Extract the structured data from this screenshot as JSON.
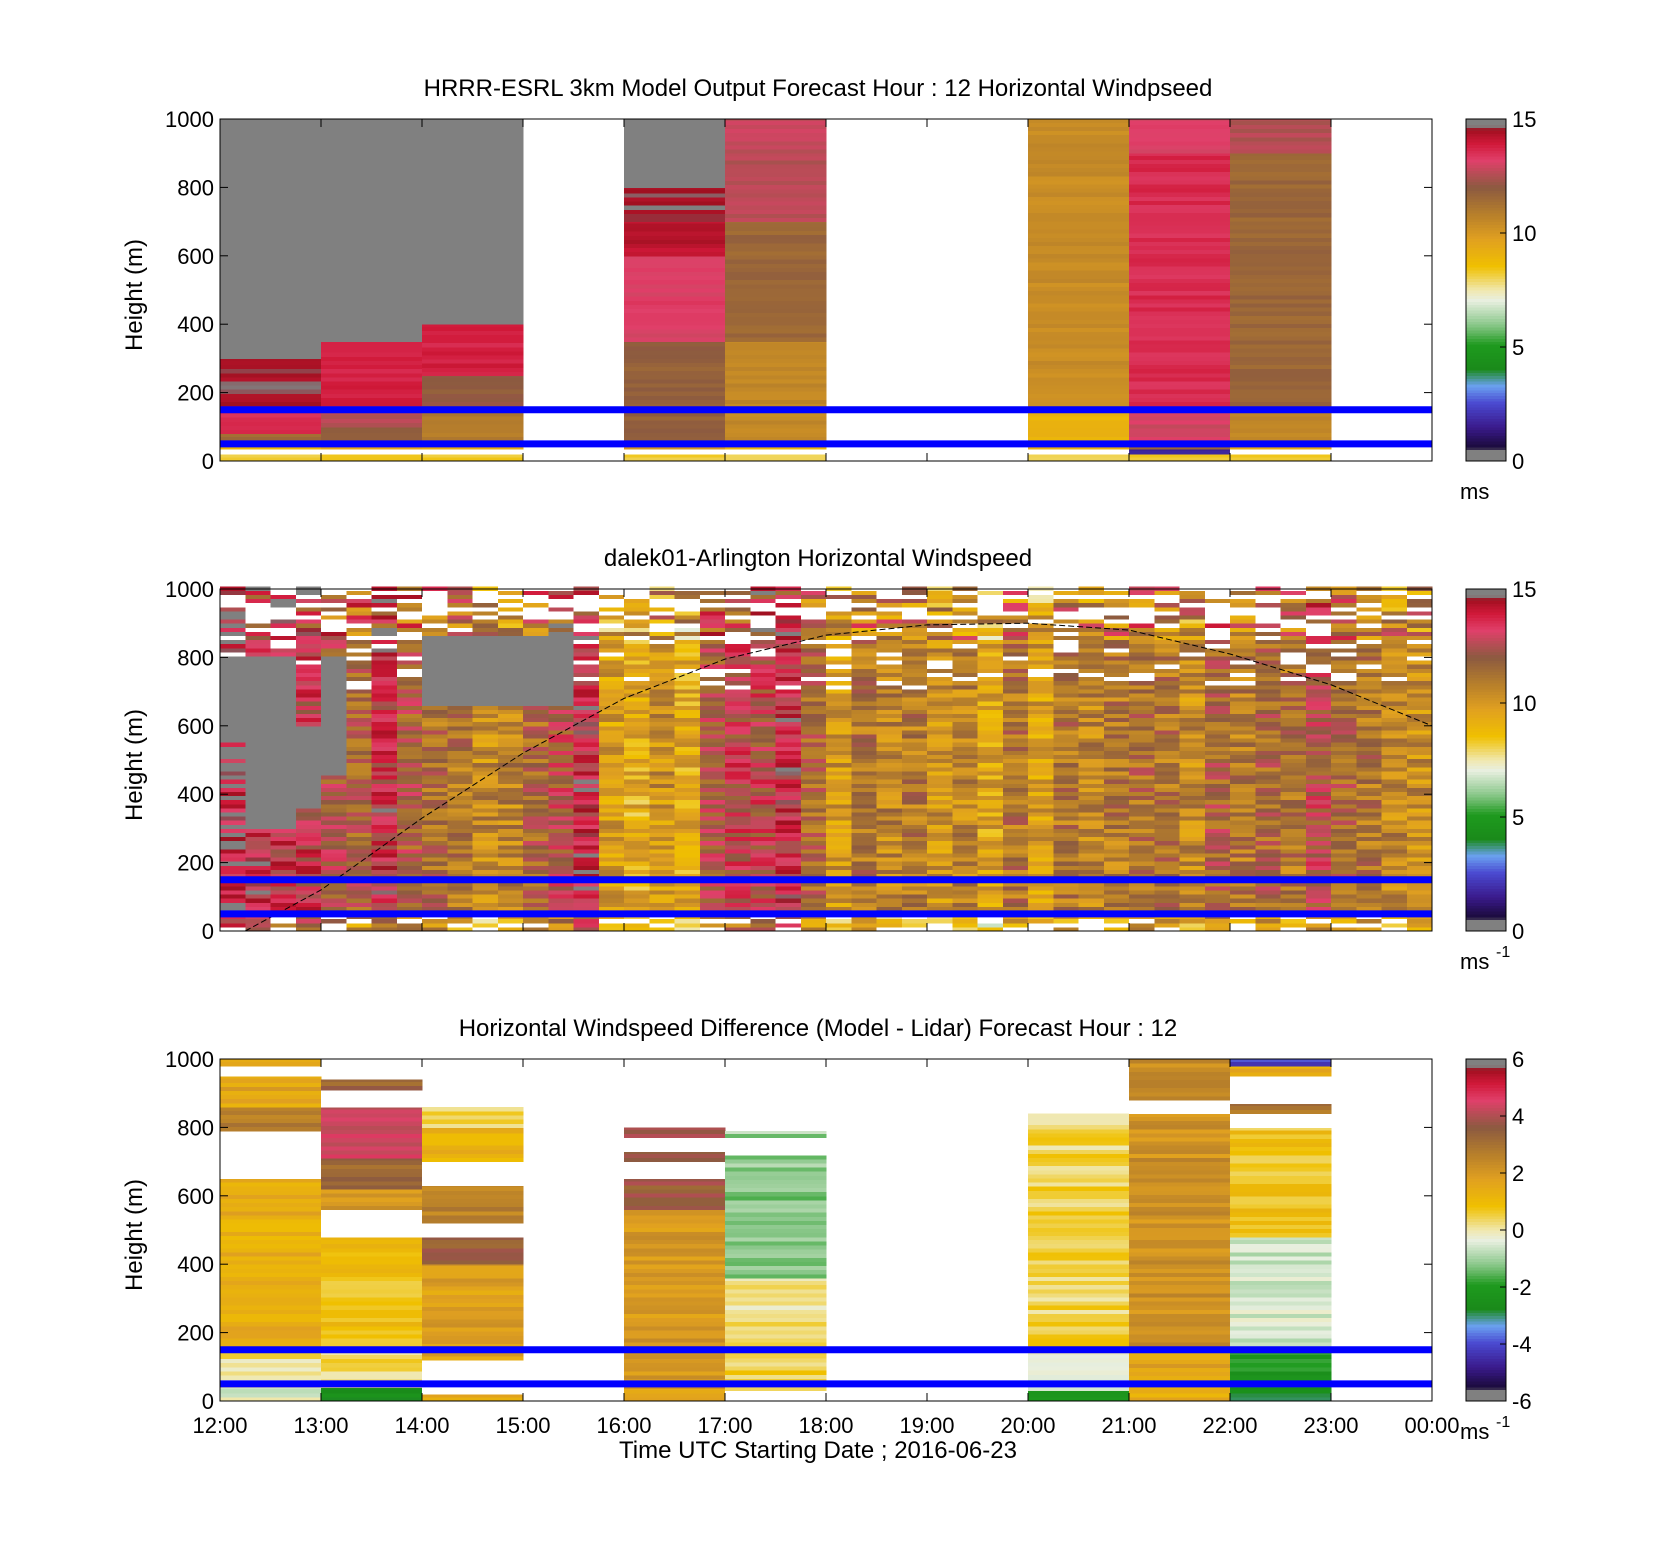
{
  "figure": {
    "xlabel": "Time UTC  Starting Date ; 2016-06-23",
    "x_tick_labels": [
      "12:00",
      "13:00",
      "14:00",
      "15:00",
      "16:00",
      "17:00",
      "18:00",
      "19:00",
      "20:00",
      "21:00",
      "22:00",
      "23:00",
      "00:00"
    ]
  },
  "colors": {
    "ref_line": "#0000ff",
    "missing": "#ffffff",
    "speed_scale": [
      [
        0.0,
        "#808080"
      ],
      [
        0.03,
        "#808080"
      ],
      [
        0.04,
        "#1a0a3a"
      ],
      [
        0.1,
        "#3a1a8c"
      ],
      [
        0.17,
        "#4a4ad0"
      ],
      [
        0.22,
        "#6aa0f0"
      ],
      [
        0.27,
        "#1a8a1a"
      ],
      [
        0.34,
        "#1e9a1e"
      ],
      [
        0.4,
        "#8cc88c"
      ],
      [
        0.47,
        "#e8efe0"
      ],
      [
        0.5,
        "#f0e8b0"
      ],
      [
        0.57,
        "#f0c000"
      ],
      [
        0.65,
        "#e0a020"
      ],
      [
        0.72,
        "#b8802a"
      ],
      [
        0.8,
        "#8c5a40"
      ],
      [
        0.88,
        "#e0406a"
      ],
      [
        0.93,
        "#d01838"
      ],
      [
        0.97,
        "#a01020"
      ],
      [
        0.98,
        "#808080"
      ],
      [
        1.0,
        "#808080"
      ]
    ]
  },
  "chart_data": [
    {
      "type": "heatmap",
      "title": "HRRR-ESRL 3km Model Output   Forecast Hour : 12 Horizontal Windpseed",
      "ylabel": "Height (m)",
      "ylim": [
        0,
        1000
      ],
      "yticks": [
        0,
        200,
        400,
        600,
        800,
        1000
      ],
      "x_hours": [
        12,
        24
      ],
      "reference_lines_m": [
        50,
        150
      ],
      "colorbar": {
        "range": [
          0,
          15
        ],
        "ticks": [
          0,
          5,
          10,
          15
        ],
        "unit": "ms",
        "unit_sup": ""
      },
      "columns": [
        {
          "x": [
            12,
            13
          ],
          "bands": [
            [
              0,
              20,
              8.2
            ],
            [
              20,
              35,
              null
            ],
            [
              35,
              60,
              8.8
            ],
            [
              60,
              80,
              11.5
            ],
            [
              80,
              150,
              13.5
            ],
            [
              150,
              300,
              14.5
            ],
            [
              300,
              1000,
              "gray"
            ]
          ]
        },
        {
          "x": [
            13,
            14
          ],
          "bands": [
            [
              0,
              20,
              8.2
            ],
            [
              20,
              35,
              null
            ],
            [
              35,
              60,
              9.5
            ],
            [
              60,
              100,
              12
            ],
            [
              100,
              150,
              12.5
            ],
            [
              150,
              350,
              13.8
            ],
            [
              350,
              1000,
              "gray"
            ]
          ]
        },
        {
          "x": [
            14,
            15
          ],
          "bands": [
            [
              0,
              20,
              8.2
            ],
            [
              20,
              35,
              null
            ],
            [
              35,
              60,
              9.5
            ],
            [
              60,
              150,
              11
            ],
            [
              150,
              250,
              12
            ],
            [
              250,
              400,
              13.8
            ],
            [
              400,
              1000,
              "gray"
            ]
          ]
        },
        {
          "x": [
            16,
            17
          ],
          "bands": [
            [
              0,
              20,
              8.2
            ],
            [
              20,
              35,
              null
            ],
            [
              35,
              60,
              9.8
            ],
            [
              60,
              350,
              11.8
            ],
            [
              350,
              600,
              13.2
            ],
            [
              600,
              700,
              14.2
            ],
            [
              700,
              800,
              14.6
            ],
            [
              800,
              1000,
              "gray"
            ]
          ]
        },
        {
          "x": [
            17,
            18
          ],
          "bands": [
            [
              0,
              20,
              8.2
            ],
            [
              20,
              35,
              null
            ],
            [
              35,
              60,
              9.2
            ],
            [
              60,
              350,
              10.5
            ],
            [
              350,
              700,
              11.6
            ],
            [
              700,
              900,
              12.6
            ],
            [
              900,
              1000,
              12.8
            ]
          ]
        },
        {
          "x": [
            20,
            21
          ],
          "bands": [
            [
              0,
              20,
              8.2
            ],
            [
              20,
              35,
              null
            ],
            [
              35,
              60,
              9.0
            ],
            [
              60,
              150,
              9.0
            ],
            [
              150,
              1000,
              10.4
            ]
          ]
        },
        {
          "x": [
            21,
            22
          ],
          "bands": [
            [
              0,
              20,
              8.2
            ],
            [
              20,
              35,
              1.8
            ],
            [
              35,
              60,
              11.5
            ],
            [
              60,
              150,
              13
            ],
            [
              150,
              900,
              13.6
            ],
            [
              900,
              1000,
              13.2
            ]
          ]
        },
        {
          "x": [
            22,
            23
          ],
          "bands": [
            [
              0,
              20,
              8.2
            ],
            [
              20,
              35,
              null
            ],
            [
              35,
              60,
              9.2
            ],
            [
              60,
              150,
              10.6
            ],
            [
              150,
              900,
              11.6
            ],
            [
              900,
              1000,
              12.6
            ]
          ]
        }
      ]
    },
    {
      "type": "heatmap",
      "title": "dalek01-Arlington  Horizontal Windspeed",
      "ylabel": "Height (m)",
      "ylim": [
        0,
        1000
      ],
      "yticks": [
        0,
        200,
        400,
        600,
        800,
        1000
      ],
      "x_hours": [
        12,
        24
      ],
      "reference_lines_m": [
        50,
        150
      ],
      "colorbar": {
        "range": [
          0,
          15
        ],
        "ticks": [
          0,
          5,
          10,
          15
        ],
        "unit": "ms",
        "unit_sup": "-1"
      },
      "dashed_curve": {
        "x": [
          12.25,
          13,
          14,
          15,
          16,
          17,
          18,
          19,
          20,
          21,
          22,
          23,
          24
        ],
        "y": [
          0,
          120,
          330,
          520,
          680,
          795,
          865,
          895,
          900,
          880,
          810,
          720,
          600
        ]
      },
      "column_width_h": 0.25,
      "column_speeds": [
        14.2,
        13.6,
        13.4,
        13.2,
        12.2,
        11.8,
        13.4,
        12,
        11.4,
        11.2,
        10.4,
        10.6,
        11.6,
        12.4,
        13.6,
        9.8,
        9.2,
        10.2,
        9.4,
        12.2,
        12.8,
        12.6,
        13.6,
        11.6,
        10,
        11.2,
        10.6,
        11,
        10.2,
        10.6,
        9.6,
        11.2,
        9.8,
        11.2,
        10.6,
        11,
        11.4,
        11.2,
        10.4,
        11.8,
        11,
        11.6,
        11.2,
        12.4,
        11.6,
        11.2,
        10.6,
        10.4
      ],
      "gray_regions": [
        [
          12.0,
          12.25,
          550,
          800
        ],
        [
          12.25,
          12.75,
          300,
          800
        ],
        [
          12.75,
          13.0,
          350,
          600
        ],
        [
          13.0,
          13.25,
          450,
          800
        ],
        [
          14.0,
          15.5,
          650,
          860
        ],
        [
          12.5,
          12.75,
          600,
          700
        ]
      ]
    },
    {
      "type": "heatmap",
      "title": "Horizontal Windspeed Difference (Model - Lidar) Forecast Hour : 12",
      "ylabel": "Height (m)",
      "ylim": [
        0,
        1000
      ],
      "yticks": [
        0,
        200,
        400,
        600,
        800,
        1000
      ],
      "x_hours": [
        12,
        24
      ],
      "reference_lines_m": [
        50,
        150
      ],
      "colorbar": {
        "range": [
          -6,
          6
        ],
        "ticks": [
          -6,
          -4,
          -2,
          0,
          2,
          4,
          6
        ],
        "unit": "ms",
        "unit_sup": "-1"
      },
      "columns": [
        {
          "x": [
            12,
            13
          ],
          "bands": [
            [
              0,
              40,
              -0.4
            ],
            [
              40,
              160,
              0.2
            ],
            [
              160,
              650,
              1.4
            ],
            [
              650,
              790,
              null
            ],
            [
              790,
              860,
              2.6
            ],
            [
              860,
              950,
              1.6
            ],
            [
              950,
              980,
              null
            ],
            [
              980,
              1000,
              1.4
            ]
          ]
        },
        {
          "x": [
            13,
            14
          ],
          "bands": [
            [
              0,
              40,
              -2.4
            ],
            [
              40,
              160,
              0.3
            ],
            [
              160,
              480,
              0.9
            ],
            [
              480,
              560,
              null
            ],
            [
              560,
              620,
              2.2
            ],
            [
              620,
              710,
              3.2
            ],
            [
              710,
              860,
              4.4
            ],
            [
              860,
              910,
              null
            ],
            [
              910,
              940,
              3.4
            ]
          ]
        },
        {
          "x": [
            14,
            15
          ],
          "bands": [
            [
              0,
              20,
              1.5
            ],
            [
              20,
              120,
              null
            ],
            [
              120,
              400,
              1.8
            ],
            [
              400,
              480,
              3.4
            ],
            [
              480,
              520,
              null
            ],
            [
              520,
              630,
              2.6
            ],
            [
              630,
              700,
              null
            ],
            [
              700,
              800,
              1.2
            ],
            [
              800,
              860,
              0.4
            ]
          ]
        },
        {
          "x": [
            16,
            17
          ],
          "bands": [
            [
              0,
              40,
              1.8
            ],
            [
              40,
              560,
              2.0
            ],
            [
              560,
              650,
              3.6
            ],
            [
              650,
              700,
              null
            ],
            [
              700,
              730,
              3.6
            ],
            [
              730,
              770,
              null
            ],
            [
              770,
              800,
              3.8
            ]
          ]
        },
        {
          "x": [
            17,
            18
          ],
          "bands": [
            [
              0,
              30,
              null
            ],
            [
              30,
              160,
              0.5
            ],
            [
              160,
              360,
              0.2
            ],
            [
              360,
              720,
              -1.2
            ],
            [
              720,
              770,
              null
            ],
            [
              770,
              790,
              -1.0
            ]
          ]
        },
        {
          "x": [
            20,
            21
          ],
          "bands": [
            [
              0,
              30,
              -2.2
            ],
            [
              30,
              160,
              -0.3
            ],
            [
              160,
              840,
              0.4
            ]
          ]
        },
        {
          "x": [
            21,
            22
          ],
          "bands": [
            [
              0,
              50,
              1.4
            ],
            [
              50,
              160,
              1.6
            ],
            [
              160,
              840,
              2.2
            ],
            [
              840,
              880,
              null
            ],
            [
              880,
              1000,
              2.4
            ]
          ]
        },
        {
          "x": [
            22,
            23
          ],
          "bands": [
            [
              0,
              40,
              -2.6
            ],
            [
              40,
              160,
              -2.2
            ],
            [
              160,
              480,
              -0.6
            ],
            [
              480,
              800,
              0.8
            ],
            [
              800,
              840,
              null
            ],
            [
              840,
              870,
              2.8
            ],
            [
              870,
              950,
              null
            ],
            [
              950,
              980,
              1.4
            ],
            [
              980,
              1000,
              -4.2
            ]
          ]
        }
      ]
    }
  ]
}
